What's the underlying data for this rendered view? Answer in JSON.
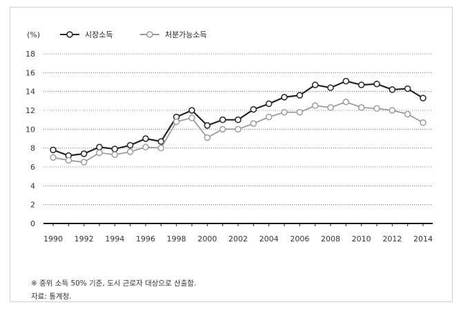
{
  "chart_data": {
    "type": "line",
    "unit_label": "(%)",
    "x": [
      1990,
      1991,
      1992,
      1993,
      1994,
      1995,
      1996,
      1997,
      1998,
      1999,
      2000,
      2001,
      2002,
      2003,
      2004,
      2005,
      2006,
      2007,
      2008,
      2009,
      2010,
      2011,
      2012,
      2013,
      2014
    ],
    "x_tick_labels": [
      "1990",
      "1992",
      "1994",
      "1996",
      "1998",
      "2000",
      "2002",
      "2004",
      "2006",
      "2008",
      "2010",
      "2012",
      "2014"
    ],
    "y_tick_labels": [
      "0",
      "2",
      "4",
      "6",
      "8",
      "10",
      "12",
      "14",
      "16",
      "18"
    ],
    "ylim": [
      0,
      18
    ],
    "grid": "horizontal dotted",
    "legend_position": "top-left",
    "series": [
      {
        "name": "시장소득",
        "color": "#222222",
        "marker_fill": "#ffffff",
        "values": [
          7.8,
          7.2,
          7.4,
          8.1,
          7.9,
          8.3,
          9.0,
          8.7,
          11.3,
          12.0,
          10.4,
          11.0,
          11.0,
          12.1,
          12.7,
          13.4,
          13.6,
          14.7,
          14.4,
          15.1,
          14.7,
          14.8,
          14.2,
          14.3,
          13.3
        ]
      },
      {
        "name": "처분가능소득",
        "color": "#9a9a9a",
        "marker_fill": "#ffffff",
        "values": [
          7.0,
          6.7,
          6.5,
          7.5,
          7.3,
          7.6,
          8.1,
          8.0,
          10.8,
          11.2,
          9.1,
          10.0,
          10.0,
          10.6,
          11.3,
          11.8,
          11.8,
          12.5,
          12.3,
          12.9,
          12.3,
          12.2,
          12.0,
          11.6,
          10.7
        ]
      }
    ]
  },
  "notes": {
    "footnote": "※ 중위 소득 50% 기준, 도시 근로자 대상으로 산출함.",
    "source": "자료: 통계청."
  }
}
